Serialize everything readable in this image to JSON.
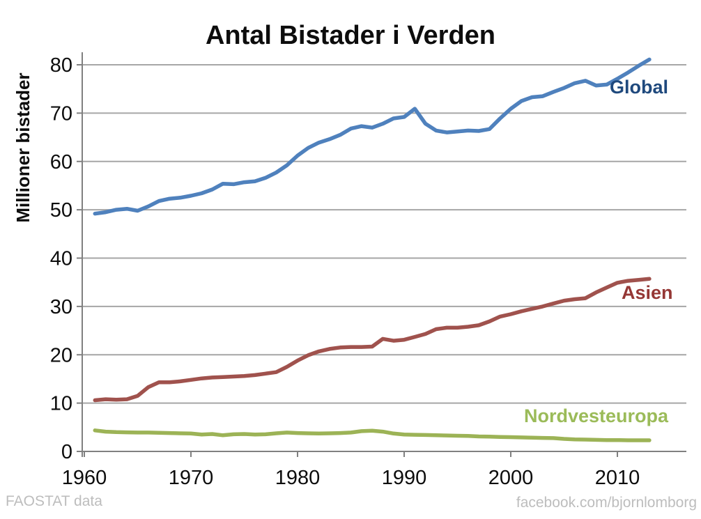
{
  "footer": {
    "left": "FAOSTAT data",
    "right": "facebook.com/bjornlomborg"
  },
  "chart_data": {
    "type": "line",
    "title": "Antal Bistader i Verden",
    "xlabel": "",
    "ylabel": "Millioner bistader",
    "xlim": [
      1960,
      2014
    ],
    "ylim": [
      0,
      80
    ],
    "x_ticks": [
      1960,
      1970,
      1980,
      1990,
      2000,
      2010
    ],
    "y_ticks": [
      0,
      10,
      20,
      30,
      40,
      50,
      60,
      70,
      80
    ],
    "grid": "horizontal",
    "legend_position": "inline-labels",
    "grid_color": "#a6a6a6",
    "axis_color": "#808080",
    "x": [
      1961,
      1962,
      1963,
      1964,
      1965,
      1966,
      1967,
      1968,
      1969,
      1970,
      1971,
      1972,
      1973,
      1974,
      1975,
      1976,
      1977,
      1978,
      1979,
      1980,
      1981,
      1982,
      1983,
      1984,
      1985,
      1986,
      1987,
      1988,
      1989,
      1990,
      1991,
      1992,
      1993,
      1994,
      1995,
      1996,
      1997,
      1998,
      1999,
      2000,
      2001,
      2002,
      2003,
      2004,
      2005,
      2006,
      2007,
      2008,
      2009,
      2010,
      2011,
      2012,
      2013
    ],
    "series": [
      {
        "name": "Global",
        "color": "#4f81bd",
        "label_color": "#1f497d",
        "values": [
          49.2,
          49.5,
          50.0,
          50.2,
          49.8,
          50.7,
          51.8,
          52.3,
          52.5,
          52.9,
          53.4,
          54.2,
          55.4,
          55.3,
          55.7,
          55.9,
          56.6,
          57.7,
          59.2,
          61.2,
          62.8,
          63.9,
          64.6,
          65.5,
          66.8,
          67.3,
          67.0,
          67.8,
          68.9,
          69.2,
          70.9,
          67.8,
          66.4,
          66.0,
          66.2,
          66.4,
          66.3,
          66.7,
          68.9,
          70.9,
          72.5,
          73.3,
          73.5,
          74.4,
          75.2,
          76.2,
          76.7,
          75.7,
          75.9,
          77.1,
          78.4,
          79.8,
          81.1
        ]
      },
      {
        "name": "Asien",
        "color": "#a0524d",
        "label_color": "#953735",
        "values": [
          10.6,
          10.8,
          10.7,
          10.8,
          11.5,
          13.3,
          14.3,
          14.3,
          14.5,
          14.8,
          15.1,
          15.3,
          15.4,
          15.5,
          15.6,
          15.8,
          16.1,
          16.4,
          17.5,
          18.8,
          19.9,
          20.7,
          21.2,
          21.5,
          21.6,
          21.6,
          21.7,
          23.3,
          22.9,
          23.1,
          23.7,
          24.3,
          25.3,
          25.6,
          25.6,
          25.8,
          26.1,
          26.9,
          27.9,
          28.4,
          29.0,
          29.5,
          30.0,
          30.6,
          31.2,
          31.5,
          31.7,
          32.9,
          33.9,
          34.9,
          35.3,
          35.5,
          35.7
        ]
      },
      {
        "name": "Nordvesteuropa",
        "color": "#9cb356",
        "label_color": "#9bbb59",
        "values": [
          4.35,
          4.1,
          4.0,
          3.95,
          3.9,
          3.9,
          3.85,
          3.8,
          3.75,
          3.7,
          3.5,
          3.6,
          3.35,
          3.55,
          3.6,
          3.5,
          3.55,
          3.75,
          3.9,
          3.8,
          3.75,
          3.7,
          3.75,
          3.8,
          3.9,
          4.2,
          4.3,
          4.1,
          3.7,
          3.5,
          3.45,
          3.4,
          3.35,
          3.3,
          3.25,
          3.2,
          3.1,
          3.05,
          3.0,
          2.95,
          2.9,
          2.85,
          2.8,
          2.75,
          2.6,
          2.5,
          2.45,
          2.4,
          2.35,
          2.35,
          2.3,
          2.3,
          2.3
        ]
      }
    ]
  }
}
